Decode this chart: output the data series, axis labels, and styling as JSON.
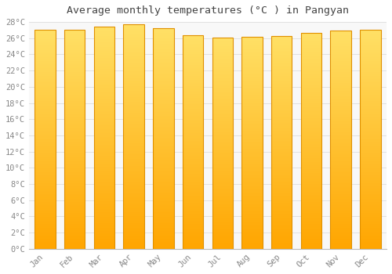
{
  "title": "Average monthly temperatures (°C ) in Pangyan",
  "months": [
    "Jan",
    "Feb",
    "Mar",
    "Apr",
    "May",
    "Jun",
    "Jul",
    "Aug",
    "Sep",
    "Oct",
    "Nov",
    "Dec"
  ],
  "temperatures": [
    27.0,
    27.0,
    27.4,
    27.7,
    27.2,
    26.4,
    26.1,
    26.2,
    26.3,
    26.7,
    26.9,
    27.0
  ],
  "ylim": [
    0,
    28
  ],
  "yticks": [
    0,
    2,
    4,
    6,
    8,
    10,
    12,
    14,
    16,
    18,
    20,
    22,
    24,
    26,
    28
  ],
  "bar_color_bottom": "#FFA500",
  "bar_color_top": "#FFE066",
  "bar_edge_color": "#E09000",
  "background_color": "#FFFFFF",
  "plot_bg_color": "#F8F8F8",
  "grid_color": "#DDDDDD",
  "title_fontsize": 9.5,
  "tick_fontsize": 7.5,
  "title_color": "#444444",
  "tick_color": "#888888"
}
